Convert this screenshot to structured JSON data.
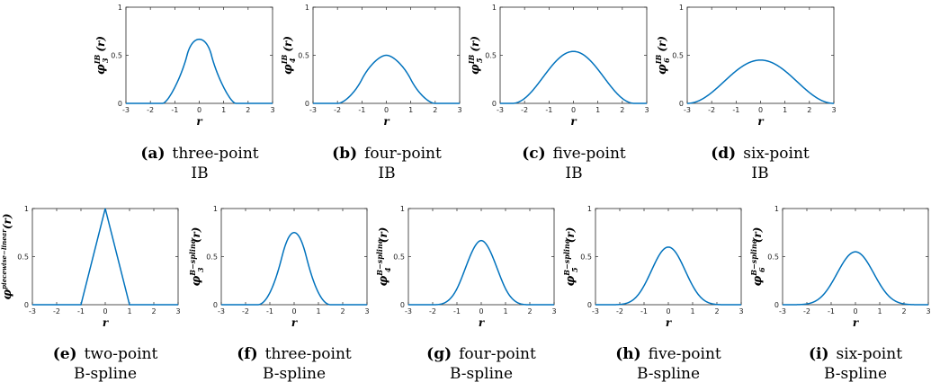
{
  "chart_data": [
    {
      "panel": "a",
      "type": "line",
      "xlabel": "r",
      "ylabel_base": "φ",
      "ylabel_sup": "IB",
      "ylabel_sub": "3",
      "ylabel_arg": "(r)",
      "xlim": [
        -3,
        3
      ],
      "ylim": [
        0,
        1
      ],
      "xticks": [
        "-3",
        "-2",
        "-1",
        "0",
        "1",
        "2",
        "3"
      ],
      "yticks": [
        "0",
        "0.5",
        "1"
      ],
      "kernel": "ib3",
      "peak": 0.667,
      "support": 1.5,
      "color": "#0072BD",
      "caption_tag": "(a)",
      "caption_line1": "three-point",
      "caption_line2": "IB"
    },
    {
      "panel": "b",
      "type": "line",
      "xlabel": "r",
      "ylabel_base": "φ",
      "ylabel_sup": "IB",
      "ylabel_sub": "4",
      "ylabel_arg": "(r)",
      "xlim": [
        -3,
        3
      ],
      "ylim": [
        0,
        1
      ],
      "xticks": [
        "-3",
        "-2",
        "-1",
        "0",
        "1",
        "2",
        "3"
      ],
      "yticks": [
        "0",
        "0.5",
        "1"
      ],
      "kernel": "ib4",
      "peak": 0.5,
      "support": 2,
      "color": "#0072BD",
      "caption_tag": "(b)",
      "caption_line1": "four-point",
      "caption_line2": "IB"
    },
    {
      "panel": "c",
      "type": "line",
      "xlabel": "r",
      "ylabel_base": "φ",
      "ylabel_sup": "IB",
      "ylabel_sub": "5",
      "ylabel_arg": "(r)",
      "xlim": [
        -3,
        3
      ],
      "ylim": [
        0,
        1
      ],
      "xticks": [
        "-3",
        "-2",
        "-1",
        "0",
        "1",
        "2",
        "3"
      ],
      "yticks": [
        "0",
        "0.5",
        "1"
      ],
      "kernel": "bell",
      "peak": 0.54,
      "support": 2.5,
      "color": "#0072BD",
      "caption_tag": "(c)",
      "caption_line1": "five-point",
      "caption_line2": "IB"
    },
    {
      "panel": "d",
      "type": "line",
      "xlabel": "r",
      "ylabel_base": "φ",
      "ylabel_sup": "IB",
      "ylabel_sub": "6",
      "ylabel_arg": "(r)",
      "xlim": [
        -3,
        3
      ],
      "ylim": [
        0,
        1
      ],
      "xticks": [
        "-3",
        "-2",
        "-1",
        "0",
        "1",
        "2",
        "3"
      ],
      "yticks": [
        "0",
        "0.5",
        "1"
      ],
      "kernel": "bell",
      "peak": 0.45,
      "support": 3,
      "color": "#0072BD",
      "caption_tag": "(d)",
      "caption_line1": "six-point",
      "caption_line2": "IB"
    },
    {
      "panel": "e",
      "type": "line",
      "xlabel": "r",
      "ylabel_base": "φ",
      "ylabel_sup": "piecewise−linear",
      "ylabel_sub": "",
      "ylabel_arg": "(r)",
      "xlim": [
        -3,
        3
      ],
      "ylim": [
        0,
        1
      ],
      "xticks": [
        "-3",
        "-2",
        "-1",
        "0",
        "1",
        "2",
        "3"
      ],
      "yticks": [
        "0",
        "0.5",
        "1"
      ],
      "kernel": "hat",
      "peak": 1,
      "support": 1,
      "color": "#0072BD",
      "caption_tag": "(e)",
      "caption_line1": "two-point",
      "caption_line2": "B-spline"
    },
    {
      "panel": "f",
      "type": "line",
      "xlabel": "r",
      "ylabel_base": "φ",
      "ylabel_sup": "B−spline",
      "ylabel_sub": "3",
      "ylabel_arg": "(r)",
      "xlim": [
        -3,
        3
      ],
      "ylim": [
        0,
        1
      ],
      "xticks": [
        "-3",
        "-2",
        "-1",
        "0",
        "1",
        "2",
        "3"
      ],
      "yticks": [
        "0",
        "0.5",
        "1"
      ],
      "kernel": "bspline",
      "order": 3,
      "peak": 0.75,
      "support": 1.5,
      "color": "#0072BD",
      "caption_tag": "(f)",
      "caption_line1": "three-point",
      "caption_line2": "B-spline"
    },
    {
      "panel": "g",
      "type": "line",
      "xlabel": "r",
      "ylabel_base": "φ",
      "ylabel_sup": "B−spline",
      "ylabel_sub": "4",
      "ylabel_arg": "(r)",
      "xlim": [
        -3,
        3
      ],
      "ylim": [
        0,
        1
      ],
      "xticks": [
        "-3",
        "-2",
        "-1",
        "0",
        "1",
        "2",
        "3"
      ],
      "yticks": [
        "0",
        "0.5",
        "1"
      ],
      "kernel": "bspline",
      "order": 4,
      "peak": 0.667,
      "support": 2,
      "color": "#0072BD",
      "caption_tag": "(g)",
      "caption_line1": "four-point",
      "caption_line2": "B-spline"
    },
    {
      "panel": "h",
      "type": "line",
      "xlabel": "r",
      "ylabel_base": "φ",
      "ylabel_sup": "B−spline",
      "ylabel_sub": "5",
      "ylabel_arg": "(r)",
      "xlim": [
        -3,
        3
      ],
      "ylim": [
        0,
        1
      ],
      "xticks": [
        "-3",
        "-2",
        "-1",
        "0",
        "1",
        "2",
        "3"
      ],
      "yticks": [
        "0",
        "0.5",
        "1"
      ],
      "kernel": "bspline",
      "order": 5,
      "peak": 0.599,
      "support": 2.5,
      "color": "#0072BD",
      "caption_tag": "(h)",
      "caption_line1": "five-point",
      "caption_line2": "B-spline"
    },
    {
      "panel": "i",
      "type": "line",
      "xlabel": "r",
      "ylabel_base": "φ",
      "ylabel_sup": "B−spline",
      "ylabel_sub": "6",
      "ylabel_arg": "(r)",
      "xlim": [
        -3,
        3
      ],
      "ylim": [
        0,
        1
      ],
      "xticks": [
        "-3",
        "-2",
        "-1",
        "0",
        "1",
        "2",
        "3"
      ],
      "yticks": [
        "0",
        "0.5",
        "1"
      ],
      "kernel": "bspline",
      "order": 6,
      "peak": 0.55,
      "support": 3,
      "color": "#0072BD",
      "caption_tag": "(i)",
      "caption_line1": "six-point",
      "caption_line2": "B-spline"
    }
  ]
}
